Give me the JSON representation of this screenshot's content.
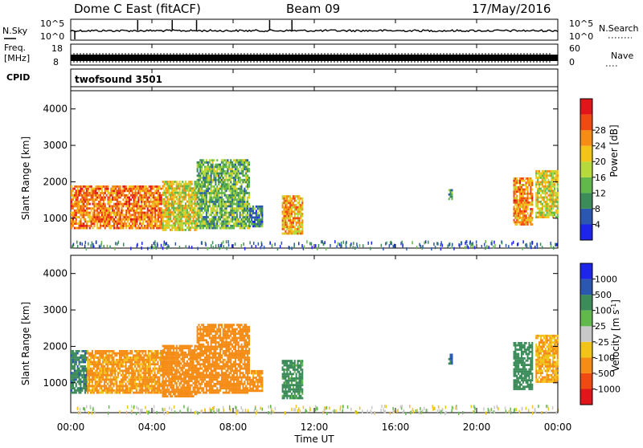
{
  "header": {
    "station": "Dome C East (fitACF)",
    "beam": "Beam 09",
    "date": "17/May/2016"
  },
  "top_panels": {
    "nsky_label": "N.Sky",
    "nsky_ticks": [
      "10^5",
      "10^0"
    ],
    "nsearch_label": "N.Search",
    "nsearch_ticks": [
      "10^5",
      "10^0"
    ],
    "freq_label_1": "Freq.",
    "freq_label_2": "[MHz]",
    "freq_ticks": [
      "18",
      "8"
    ],
    "nave_label": "Nave",
    "nave_ticks": [
      "60",
      "0"
    ],
    "cpid_label": "CPID",
    "cpid_value": "twofsound 3501"
  },
  "colors": {
    "power_scale": [
      "#1d26e8",
      "#2b57b0",
      "#3c8c5a",
      "#62b84a",
      "#b6d93b",
      "#f2c419",
      "#f58c16",
      "#ee4a12",
      "#e1161b"
    ],
    "velocity_scale": [
      "#e1161b",
      "#ee4a12",
      "#f58c16",
      "#f2c419",
      "#c8c8c8",
      "#62b84a",
      "#3c8c5a",
      "#2b57b0",
      "#1d26e8"
    ]
  },
  "chart_data": [
    {
      "type": "heatmap",
      "name": "power",
      "ylabel": "Slant Range [km]",
      "yticks": [
        "1000",
        "2000",
        "3000",
        "4000"
      ],
      "ylim": [
        180,
        4500
      ],
      "xlim": [
        0,
        24
      ],
      "colorbar_label": "Power [dB]",
      "colorbar_ticks": [
        "4",
        "8",
        "12",
        "16",
        "20",
        "24",
        "28"
      ],
      "clim": [
        0,
        32
      ],
      "regions": [
        {
          "x0": 0.0,
          "x1": 4.5,
          "r0": 700,
          "r1": 1900,
          "c": 27
        },
        {
          "x0": 4.5,
          "x1": 6.2,
          "r0": 650,
          "r1": 2000,
          "c": 20
        },
        {
          "x0": 6.2,
          "x1": 8.8,
          "r0": 700,
          "r1": 2600,
          "c": 14
        },
        {
          "x0": 8.8,
          "x1": 9.4,
          "r0": 750,
          "r1": 1300,
          "c": 10
        },
        {
          "x0": 10.4,
          "x1": 11.4,
          "r0": 550,
          "r1": 1600,
          "c": 24
        },
        {
          "x0": 18.6,
          "x1": 18.8,
          "r0": 1500,
          "r1": 1800,
          "c": 12
        },
        {
          "x0": 21.8,
          "x1": 22.7,
          "r0": 800,
          "r1": 2100,
          "c": 26
        },
        {
          "x0": 22.9,
          "x1": 24.0,
          "r0": 1000,
          "r1": 2300,
          "c": 20
        }
      ]
    },
    {
      "type": "heatmap",
      "name": "velocity",
      "ylabel": "Slant Range [km]",
      "yticks": [
        "1000",
        "2000",
        "3000",
        "4000"
      ],
      "ylim": [
        180,
        4500
      ],
      "xlim": [
        0,
        24
      ],
      "colorbar_label": "Velocity [m s^-1]",
      "colorbar_ticks": [
        "1000",
        "500",
        "100",
        "25",
        "-25",
        "-100",
        "-500",
        "-1000"
      ],
      "regions": [
        {
          "x0": 0.0,
          "x1": 0.8,
          "r0": 700,
          "r1": 1900,
          "v": 350
        },
        {
          "x0": 0.8,
          "x1": 4.5,
          "r0": 700,
          "r1": 1900,
          "v": -150
        },
        {
          "x0": 4.5,
          "x1": 6.2,
          "r0": 600,
          "r1": 2000,
          "v": -300
        },
        {
          "x0": 6.2,
          "x1": 8.8,
          "r0": 700,
          "r1": 2600,
          "v": -250
        },
        {
          "x0": 8.8,
          "x1": 9.4,
          "r0": 750,
          "r1": 1300,
          "v": -200
        },
        {
          "x0": 10.4,
          "x1": 11.4,
          "r0": 550,
          "r1": 1600,
          "v": 200
        },
        {
          "x0": 18.6,
          "x1": 18.8,
          "r0": 1500,
          "r1": 1800,
          "v": 400
        },
        {
          "x0": 21.8,
          "x1": 22.7,
          "r0": 800,
          "r1": 2100,
          "v": 300
        },
        {
          "x0": 22.9,
          "x1": 24.0,
          "r0": 1000,
          "r1": 2300,
          "v": -100
        }
      ]
    }
  ],
  "xaxis": {
    "ticks": [
      "00:00",
      "04:00",
      "08:00",
      "12:00",
      "16:00",
      "20:00",
      "00:00"
    ],
    "label": "Time UT"
  }
}
